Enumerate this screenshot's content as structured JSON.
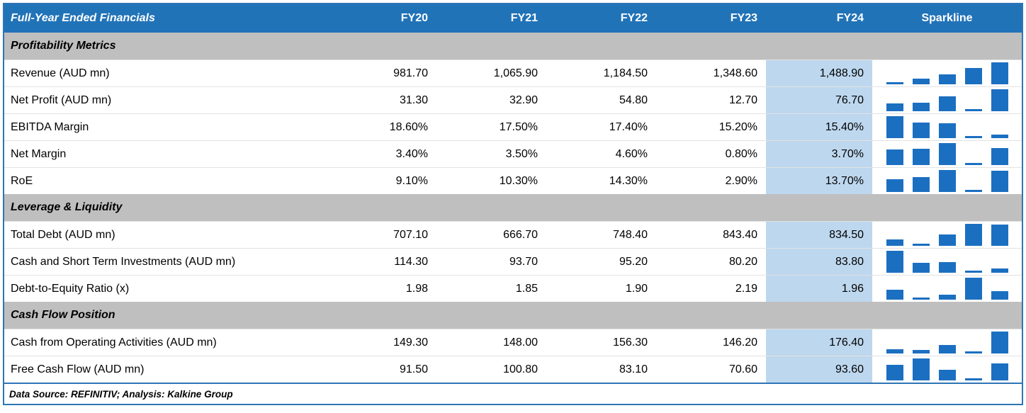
{
  "chart_data": {
    "type": "table",
    "title": "Full-Year Ended Financials",
    "columns": [
      "FY20",
      "FY21",
      "FY22",
      "FY23",
      "FY24",
      "Sparkline"
    ],
    "highlight_column": "FY24",
    "sparkline_type": "bar",
    "sections": [
      {
        "label": "Profitability Metrics",
        "rows": [
          {
            "label": "Revenue (AUD mn)",
            "values": [
              "981.70",
              "1,065.90",
              "1,184.50",
              "1,348.60",
              "1,488.90"
            ]
          },
          {
            "label": "Net Profit (AUD mn)",
            "values": [
              "31.30",
              "32.90",
              "54.80",
              "12.70",
              "76.70"
            ]
          },
          {
            "label": "EBITDA Margin",
            "values": [
              "18.60%",
              "17.50%",
              "17.40%",
              "15.20%",
              "15.40%"
            ]
          },
          {
            "label": "Net Margin",
            "values": [
              "3.40%",
              "3.50%",
              "4.60%",
              "0.80%",
              "3.70%"
            ]
          },
          {
            "label": "RoE",
            "values": [
              "9.10%",
              "10.30%",
              "14.30%",
              "2.90%",
              "13.70%"
            ]
          }
        ]
      },
      {
        "label": "Leverage & Liquidity",
        "rows": [
          {
            "label": "Total Debt (AUD mn)",
            "values": [
              "707.10",
              "666.70",
              "748.40",
              "843.40",
              "834.50"
            ]
          },
          {
            "label": "Cash and Short Term Investments (AUD mn)",
            "values": [
              "114.30",
              "93.70",
              "95.20",
              "80.20",
              "83.80"
            ]
          },
          {
            "label": "Debt-to-Equity Ratio (x)",
            "values": [
              "1.98",
              "1.85",
              "1.90",
              "2.19",
              "1.96"
            ]
          }
        ]
      },
      {
        "label": "Cash Flow Position",
        "rows": [
          {
            "label": "Cash from Operating Activities (AUD mn)",
            "values": [
              "149.30",
              "148.00",
              "156.30",
              "146.20",
              "176.40"
            ]
          },
          {
            "label": "Free Cash Flow (AUD mn)",
            "values": [
              "91.50",
              "100.80",
              "83.10",
              "70.60",
              "93.60"
            ]
          }
        ]
      }
    ],
    "footer_note": "Data Source: REFINITIV; Analysis: Kalkine Group"
  },
  "colors": {
    "header_bg": "#2173b8",
    "section_bg": "#bfbfbf",
    "highlight_bg": "#bdd7ee",
    "sparkline_bar": "#1b6fc1",
    "border": "#2e75b6"
  }
}
